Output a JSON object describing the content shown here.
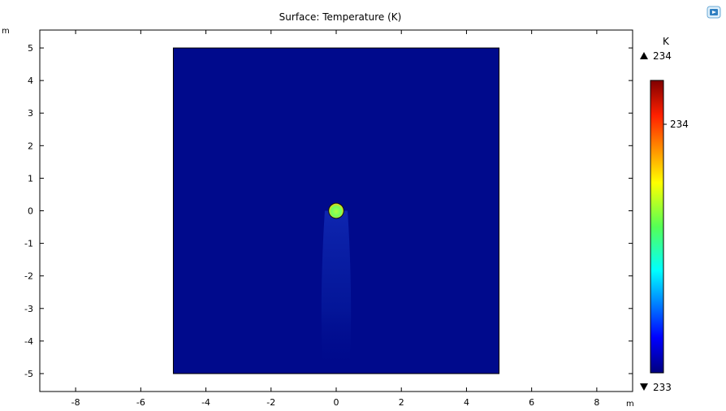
{
  "chart_data": {
    "type": "heatmap",
    "title": "Surface: Temperature (K)",
    "xlabel_unit": "m",
    "ylabel_unit": "m",
    "xlim": [
      -9.1,
      9.1
    ],
    "ylim": [
      -5.55,
      5.55
    ],
    "x_ticks": [
      -8,
      -6,
      -4,
      -2,
      0,
      2,
      4,
      6,
      8
    ],
    "y_ticks": [
      5,
      4,
      3,
      2,
      1,
      0,
      -1,
      -2,
      -3,
      -4,
      -5
    ],
    "domain": {
      "x": [
        -5,
        5
      ],
      "y": [
        -5,
        5
      ]
    },
    "obstacle": {
      "center": [
        0,
        0
      ],
      "radius": 0.22
    },
    "colorbar": {
      "unit": "K",
      "max_label": "234",
      "min_label": "233",
      "tick_labels": [
        "234"
      ],
      "colormap": "rainbow"
    },
    "colors": {
      "background_field": "#000a8c",
      "wake": "#0a28b0"
    }
  },
  "toolbar": {
    "export_icon": "image-export-icon"
  }
}
